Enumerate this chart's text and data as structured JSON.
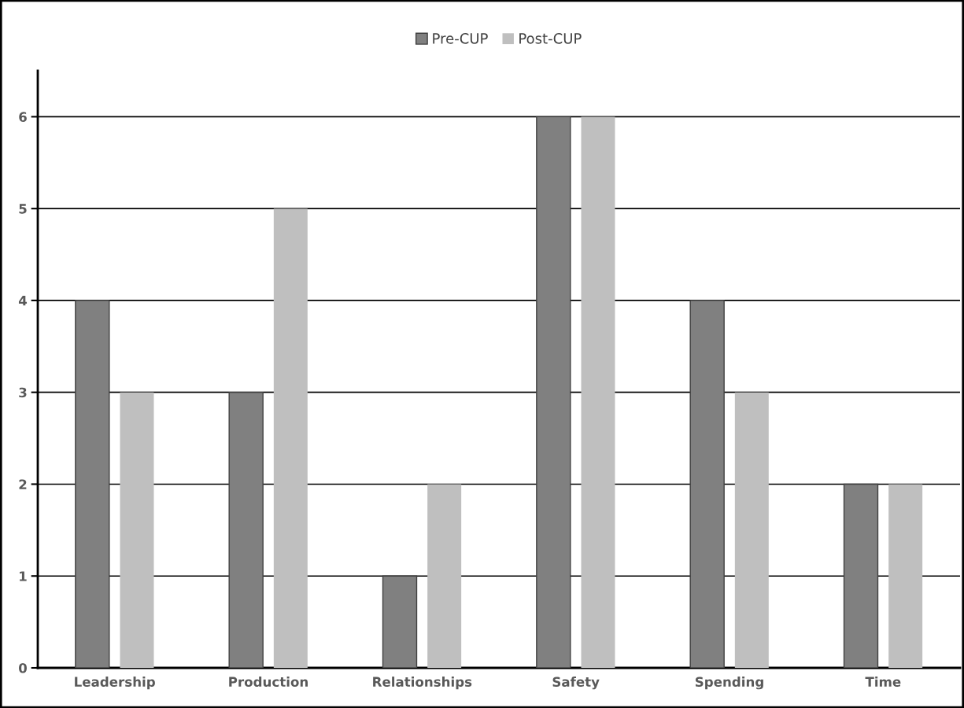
{
  "chart_data": {
    "type": "bar",
    "categories": [
      "Leadership",
      "Production",
      "Relationships",
      "Safety",
      "Spending",
      "Time"
    ],
    "series": [
      {
        "name": "Pre-CUP",
        "color": "#808080",
        "values": [
          4,
          3,
          1,
          6,
          4,
          2
        ]
      },
      {
        "name": "Post-CUP",
        "color": "#bfbfbf",
        "values": [
          3,
          5,
          2,
          6,
          3,
          2
        ]
      }
    ],
    "ylim": [
      0,
      6.5
    ],
    "yticks": [
      0,
      1,
      2,
      3,
      4,
      5,
      6
    ],
    "grid": "y",
    "legend": "top"
  }
}
